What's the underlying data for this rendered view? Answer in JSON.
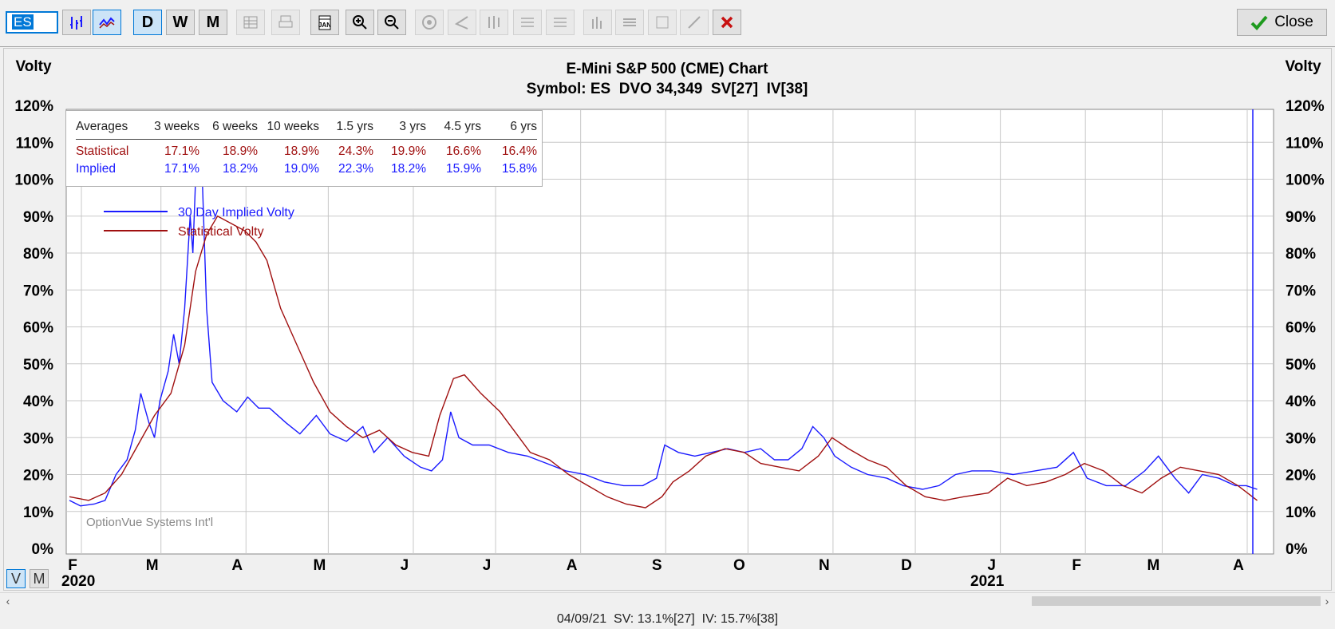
{
  "toolbar": {
    "symbol": "ES",
    "period_d": "D",
    "period_w": "W",
    "period_m": "M",
    "close_label": "Close"
  },
  "chart": {
    "title": "E-Mini S&P 500 (CME) Chart",
    "subtitle": "Symbol: ES  DVO 34,349  SV[27]  IV[38]",
    "left_axis_label": "Volty",
    "right_axis_label": "Volty",
    "watermark": "OptionVue Systems Int'l",
    "year_labels": [
      "2020",
      "2021"
    ],
    "view_v": "V",
    "view_m": "M"
  },
  "averages": {
    "headers": [
      "Averages",
      "3 weeks",
      "6 weeks",
      "10 weeks",
      "1.5 yrs",
      "3 yrs",
      "4.5 yrs",
      "6 yrs"
    ],
    "statistical": [
      "Statistical",
      "17.1%",
      "18.9%",
      "18.9%",
      "24.3%",
      "19.9%",
      "16.6%",
      "16.4%"
    ],
    "implied": [
      "Implied",
      "17.1%",
      "18.2%",
      "19.0%",
      "22.3%",
      "18.2%",
      "15.9%",
      "15.8%"
    ]
  },
  "status_text": "04/09/21  SV: 13.1%[27]  IV: 15.7%[38]",
  "colors": {
    "implied": "#1a1aff",
    "statistical": "#a01010",
    "grid": "#c8c8c8"
  },
  "chart_data": {
    "type": "line",
    "ylim": [
      0,
      120
    ],
    "yticks": [
      "0%",
      "10%",
      "20%",
      "30%",
      "40%",
      "50%",
      "60%",
      "70%",
      "80%",
      "90%",
      "100%",
      "110%",
      "120%"
    ],
    "month_labels": [
      "F",
      "M",
      "A",
      "M",
      "J",
      "J",
      "A",
      "S",
      "O",
      "N",
      "D",
      "J",
      "F",
      "M",
      "A"
    ],
    "grid": true,
    "legend_position": "top-left",
    "series": [
      {
        "name": "30 Day Implied Volty",
        "color": "#1a1aff",
        "points": [
          [
            "2020-02-01",
            13
          ],
          [
            "2020-02-05",
            11.5
          ],
          [
            "2020-02-10",
            12
          ],
          [
            "2020-02-14",
            13
          ],
          [
            "2020-02-18",
            20
          ],
          [
            "2020-02-22",
            24
          ],
          [
            "2020-02-25",
            32
          ],
          [
            "2020-02-27",
            42
          ],
          [
            "2020-03-01",
            34
          ],
          [
            "2020-03-03",
            30
          ],
          [
            "2020-03-05",
            40
          ],
          [
            "2020-03-08",
            48
          ],
          [
            "2020-03-10",
            58
          ],
          [
            "2020-03-12",
            50
          ],
          [
            "2020-03-14",
            65
          ],
          [
            "2020-03-16",
            90
          ],
          [
            "2020-03-17",
            80
          ],
          [
            "2020-03-18",
            100
          ],
          [
            "2020-03-20",
            110
          ],
          [
            "2020-03-22",
            65
          ],
          [
            "2020-03-24",
            45
          ],
          [
            "2020-03-28",
            40
          ],
          [
            "2020-04-02",
            37
          ],
          [
            "2020-04-06",
            41
          ],
          [
            "2020-04-10",
            38
          ],
          [
            "2020-04-14",
            38
          ],
          [
            "2020-04-20",
            34
          ],
          [
            "2020-04-25",
            31
          ],
          [
            "2020-05-01",
            36
          ],
          [
            "2020-05-06",
            31
          ],
          [
            "2020-05-12",
            29
          ],
          [
            "2020-05-18",
            33
          ],
          [
            "2020-05-22",
            26
          ],
          [
            "2020-05-27",
            30
          ],
          [
            "2020-06-02",
            25
          ],
          [
            "2020-06-08",
            22
          ],
          [
            "2020-06-12",
            21
          ],
          [
            "2020-06-16",
            24
          ],
          [
            "2020-06-19",
            37
          ],
          [
            "2020-06-22",
            30
          ],
          [
            "2020-06-27",
            28
          ],
          [
            "2020-07-03",
            28
          ],
          [
            "2020-07-10",
            26
          ],
          [
            "2020-07-17",
            25
          ],
          [
            "2020-07-24",
            23
          ],
          [
            "2020-07-31",
            21
          ],
          [
            "2020-08-07",
            20
          ],
          [
            "2020-08-14",
            18
          ],
          [
            "2020-08-21",
            17
          ],
          [
            "2020-08-28",
            17
          ],
          [
            "2020-09-02",
            19
          ],
          [
            "2020-09-05",
            28
          ],
          [
            "2020-09-10",
            26
          ],
          [
            "2020-09-16",
            25
          ],
          [
            "2020-09-22",
            26
          ],
          [
            "2020-09-28",
            27
          ],
          [
            "2020-10-04",
            26
          ],
          [
            "2020-10-10",
            27
          ],
          [
            "2020-10-15",
            24
          ],
          [
            "2020-10-20",
            24
          ],
          [
            "2020-10-25",
            27
          ],
          [
            "2020-10-29",
            33
          ],
          [
            "2020-11-02",
            30
          ],
          [
            "2020-11-06",
            25
          ],
          [
            "2020-11-12",
            22
          ],
          [
            "2020-11-18",
            20
          ],
          [
            "2020-11-25",
            19
          ],
          [
            "2020-12-01",
            17
          ],
          [
            "2020-12-08",
            16
          ],
          [
            "2020-12-14",
            17
          ],
          [
            "2020-12-20",
            20
          ],
          [
            "2020-12-26",
            21
          ],
          [
            "2021-01-02",
            21
          ],
          [
            "2021-01-10",
            20
          ],
          [
            "2021-01-18",
            21
          ],
          [
            "2021-01-26",
            22
          ],
          [
            "2021-02-01",
            26
          ],
          [
            "2021-02-06",
            19
          ],
          [
            "2021-02-13",
            17
          ],
          [
            "2021-02-20",
            17
          ],
          [
            "2021-02-27",
            21
          ],
          [
            "2021-03-04",
            25
          ],
          [
            "2021-03-10",
            19
          ],
          [
            "2021-03-15",
            15
          ],
          [
            "2021-03-20",
            20
          ],
          [
            "2021-03-26",
            19
          ],
          [
            "2021-04-01",
            17
          ],
          [
            "2021-04-05",
            17
          ],
          [
            "2021-04-09",
            16
          ]
        ]
      },
      {
        "name": "Statistical Volty",
        "color": "#a01010",
        "points": [
          [
            "2020-02-01",
            14
          ],
          [
            "2020-02-08",
            13
          ],
          [
            "2020-02-14",
            15
          ],
          [
            "2020-02-20",
            20
          ],
          [
            "2020-02-26",
            28
          ],
          [
            "2020-03-03",
            36
          ],
          [
            "2020-03-09",
            42
          ],
          [
            "2020-03-14",
            55
          ],
          [
            "2020-03-18",
            75
          ],
          [
            "2020-03-22",
            85
          ],
          [
            "2020-03-26",
            90
          ],
          [
            "2020-03-31",
            88
          ],
          [
            "2020-04-05",
            86
          ],
          [
            "2020-04-09",
            83
          ],
          [
            "2020-04-13",
            78
          ],
          [
            "2020-04-18",
            65
          ],
          [
            "2020-04-24",
            55
          ],
          [
            "2020-04-30",
            45
          ],
          [
            "2020-05-06",
            37
          ],
          [
            "2020-05-12",
            33
          ],
          [
            "2020-05-18",
            30
          ],
          [
            "2020-05-24",
            32
          ],
          [
            "2020-05-30",
            28
          ],
          [
            "2020-06-05",
            26
          ],
          [
            "2020-06-11",
            25
          ],
          [
            "2020-06-15",
            36
          ],
          [
            "2020-06-20",
            46
          ],
          [
            "2020-06-24",
            47
          ],
          [
            "2020-06-30",
            42
          ],
          [
            "2020-07-07",
            37
          ],
          [
            "2020-07-13",
            31
          ],
          [
            "2020-07-18",
            26
          ],
          [
            "2020-07-25",
            24
          ],
          [
            "2020-08-01",
            20
          ],
          [
            "2020-08-08",
            17
          ],
          [
            "2020-08-15",
            14
          ],
          [
            "2020-08-22",
            12
          ],
          [
            "2020-08-29",
            11
          ],
          [
            "2020-09-04",
            14
          ],
          [
            "2020-09-08",
            18
          ],
          [
            "2020-09-14",
            21
          ],
          [
            "2020-09-20",
            25
          ],
          [
            "2020-09-27",
            27
          ],
          [
            "2020-10-04",
            26
          ],
          [
            "2020-10-10",
            23
          ],
          [
            "2020-10-17",
            22
          ],
          [
            "2020-10-24",
            21
          ],
          [
            "2020-10-31",
            25
          ],
          [
            "2020-11-05",
            30
          ],
          [
            "2020-11-11",
            27
          ],
          [
            "2020-11-18",
            24
          ],
          [
            "2020-11-25",
            22
          ],
          [
            "2020-12-02",
            17
          ],
          [
            "2020-12-09",
            14
          ],
          [
            "2020-12-16",
            13
          ],
          [
            "2020-12-23",
            14
          ],
          [
            "2021-01-01",
            15
          ],
          [
            "2021-01-08",
            19
          ],
          [
            "2021-01-15",
            17
          ],
          [
            "2021-01-22",
            18
          ],
          [
            "2021-01-29",
            20
          ],
          [
            "2021-02-05",
            23
          ],
          [
            "2021-02-12",
            21
          ],
          [
            "2021-02-19",
            17
          ],
          [
            "2021-02-26",
            15
          ],
          [
            "2021-03-05",
            19
          ],
          [
            "2021-03-12",
            22
          ],
          [
            "2021-03-19",
            21
          ],
          [
            "2021-03-26",
            20
          ],
          [
            "2021-04-02",
            17
          ],
          [
            "2021-04-09",
            13
          ]
        ]
      }
    ]
  }
}
